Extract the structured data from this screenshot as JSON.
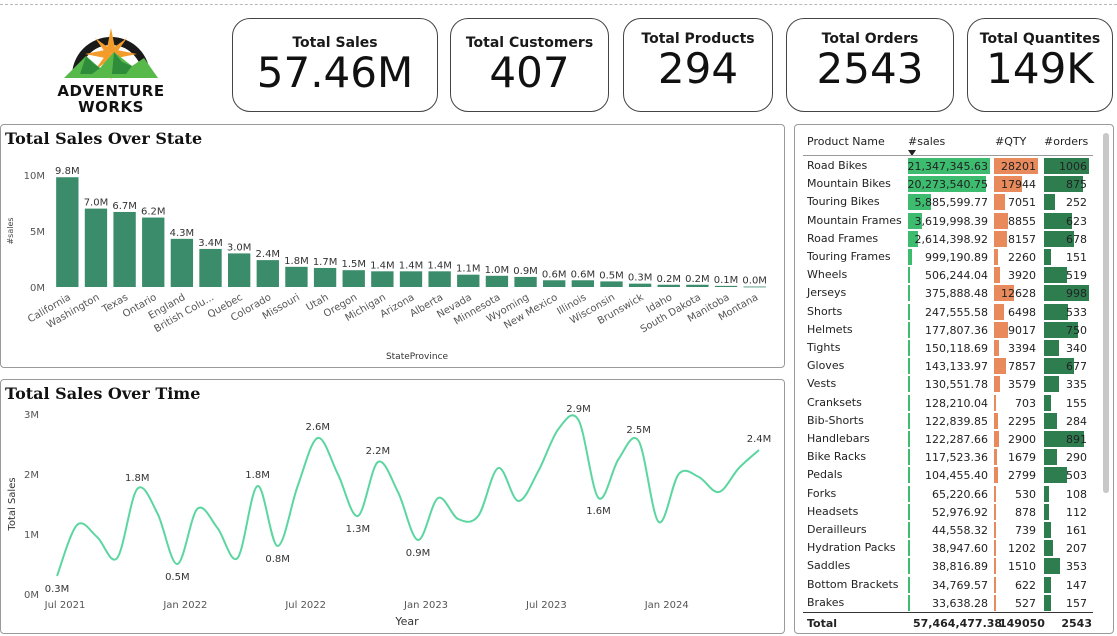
{
  "brand": {
    "line1": "ADVENTURE",
    "line2": "WORKS"
  },
  "kpis": [
    {
      "label": "Total Sales",
      "value": "57.46M"
    },
    {
      "label": "Total Customers",
      "value": "407"
    },
    {
      "label": "Total Products",
      "value": "294"
    },
    {
      "label": "Total Orders",
      "value": "2543"
    },
    {
      "label": "Total Quantites",
      "value": "149K"
    }
  ],
  "chart_data": [
    {
      "type": "bar",
      "title": "Total Sales Over State",
      "xlabel": "StateProvince",
      "ylabel": "#sales",
      "ylim": [
        0,
        10000000
      ],
      "yticks": [
        "0M",
        "5M",
        "10M"
      ],
      "categories": [
        "California",
        "Washington",
        "Texas",
        "Ontario",
        "England",
        "British Colu...",
        "Quebec",
        "Colorado",
        "Missouri",
        "Utah",
        "Oregon",
        "Michigan",
        "Arizona",
        "Alberta",
        "Nevada",
        "Minnesota",
        "Wyoming",
        "New Mexico",
        "Illinois",
        "Wisconsin",
        "Brunswick",
        "Idaho",
        "South Dakota",
        "Manitoba",
        "Montana"
      ],
      "values": [
        9800000,
        7000000,
        6700000,
        6200000,
        4300000,
        3400000,
        3000000,
        2400000,
        1800000,
        1700000,
        1500000,
        1400000,
        1400000,
        1400000,
        1100000,
        1000000,
        900000,
        600000,
        600000,
        500000,
        300000,
        200000,
        200000,
        100000,
        40000
      ],
      "labels": [
        "9.8M",
        "7.0M",
        "6.7M",
        "6.2M",
        "4.3M",
        "3.4M",
        "3.0M",
        "2.4M",
        "1.8M",
        "1.7M",
        "1.5M",
        "1.4M",
        "1.4M",
        "1.4M",
        "1.1M",
        "1.0M",
        "0.9M",
        "0.6M",
        "0.6M",
        "0.5M",
        "0.3M",
        "0.2M",
        "0.2M",
        "0.1M",
        "0.0M"
      ],
      "color": "#3a8c6a",
      "grid": false
    },
    {
      "type": "line",
      "title": "Total Sales Over Time",
      "xlabel": "Year",
      "ylabel": "Total Sales",
      "ylim": [
        0,
        3000000
      ],
      "yticks": [
        "0M",
        "1M",
        "2M",
        "3M"
      ],
      "xticks": [
        "Jul 2021",
        "Jan 2022",
        "Jul 2022",
        "Jan 2023",
        "Jul 2023",
        "Jan 2024"
      ],
      "x": [
        "2021-07",
        "2021-08",
        "2021-09",
        "2021-10",
        "2021-11",
        "2021-12",
        "2022-01",
        "2022-02",
        "2022-03",
        "2022-04",
        "2022-05",
        "2022-06",
        "2022-07",
        "2022-08",
        "2022-09",
        "2022-10",
        "2022-11",
        "2022-12",
        "2023-01",
        "2023-02",
        "2023-03",
        "2023-04",
        "2023-05",
        "2023-06",
        "2023-07",
        "2023-08",
        "2023-09",
        "2023-10",
        "2023-11",
        "2023-12",
        "2024-01",
        "2024-02",
        "2024-03",
        "2024-04",
        "2024-05",
        "2024-06"
      ],
      "values": [
        300000,
        1150000,
        950000,
        600000,
        1750000,
        1350000,
        500000,
        1420000,
        1100000,
        600000,
        1800000,
        800000,
        1800000,
        2600000,
        2000000,
        1300000,
        2200000,
        1700000,
        900000,
        1600000,
        1250000,
        1300000,
        2100000,
        1550000,
        2050000,
        2750000,
        2900000,
        1600000,
        2250000,
        2550000,
        1200000,
        2000000,
        1950000,
        1700000,
        2100000,
        2400000
      ],
      "annotations": [
        {
          "x": "2021-07",
          "label": "0.3M"
        },
        {
          "x": "2021-11",
          "label": "1.8M"
        },
        {
          "x": "2022-01",
          "label": "0.5M"
        },
        {
          "x": "2022-05",
          "label": "1.8M"
        },
        {
          "x": "2022-06",
          "label": "0.8M"
        },
        {
          "x": "2022-08",
          "label": "2.6M"
        },
        {
          "x": "2022-10",
          "label": "1.3M"
        },
        {
          "x": "2022-11",
          "label": "2.2M"
        },
        {
          "x": "2023-01",
          "label": "0.9M"
        },
        {
          "x": "2023-09",
          "label": "2.9M"
        },
        {
          "x": "2023-10",
          "label": "1.6M"
        },
        {
          "x": "2023-12",
          "label": "2.5M"
        },
        {
          "x": "2024-06",
          "label": "2.4M"
        }
      ],
      "color": "#5cd6a0",
      "grid": false
    },
    {
      "type": "table",
      "columns": [
        "Product Name",
        "#sales",
        "#QTY",
        "#orders"
      ],
      "rows": [
        [
          "Road Bikes",
          "21,347,345.63",
          28201,
          1006
        ],
        [
          "Mountain Bikes",
          "20,273,540.75",
          17944,
          875
        ],
        [
          "Touring Bikes",
          "5,885,599.77",
          7051,
          252
        ],
        [
          "Mountain Frames",
          "3,619,998.39",
          8855,
          623
        ],
        [
          "Road Frames",
          "2,614,398.92",
          8157,
          678
        ],
        [
          "Touring Frames",
          "999,190.89",
          2260,
          151
        ],
        [
          "Wheels",
          "506,244.04",
          3920,
          519
        ],
        [
          "Jerseys",
          "375,888.48",
          12628,
          998
        ],
        [
          "Shorts",
          "247,555.58",
          6498,
          533
        ],
        [
          "Helmets",
          "177,807.36",
          9017,
          750
        ],
        [
          "Tights",
          "150,118.69",
          3394,
          340
        ],
        [
          "Gloves",
          "143,133.97",
          7857,
          677
        ],
        [
          "Vests",
          "130,551.78",
          3579,
          335
        ],
        [
          "Cranksets",
          "128,210.04",
          703,
          155
        ],
        [
          "Bib-Shorts",
          "122,839.85",
          2295,
          284
        ],
        [
          "Handlebars",
          "122,287.66",
          2900,
          891
        ],
        [
          "Bike Racks",
          "117,523.36",
          1679,
          290
        ],
        [
          "Pedals",
          "104,455.40",
          2799,
          503
        ],
        [
          "Forks",
          "65,220.66",
          530,
          108
        ],
        [
          "Headsets",
          "52,976.92",
          878,
          112
        ],
        [
          "Derailleurs",
          "44,558.32",
          739,
          161
        ],
        [
          "Hydration Packs",
          "38,947.60",
          1202,
          207
        ],
        [
          "Saddles",
          "38,816.89",
          1510,
          353
        ],
        [
          "Bottom Brackets",
          "34,769.57",
          622,
          147
        ],
        [
          "Brakes",
          "33,638.28",
          527,
          157
        ]
      ],
      "sales_values": [
        21347345.63,
        20273540.75,
        5885599.77,
        3619998.39,
        2614398.92,
        999190.89,
        506244.04,
        375888.48,
        247555.58,
        177807.36,
        150118.69,
        143133.97,
        130551.78,
        128210.04,
        122839.85,
        122287.66,
        117523.36,
        104455.4,
        65220.66,
        52976.92,
        44558.32,
        38947.6,
        38816.89,
        34769.57,
        33638.28
      ],
      "total": {
        "label": "Total",
        "sales": "57,464,477.38",
        "qty": "149050",
        "orders": "2543"
      },
      "colors": {
        "sales": "#3dbb6e",
        "qty": "#e88a5c",
        "orders": "#2e7d4f"
      }
    }
  ]
}
